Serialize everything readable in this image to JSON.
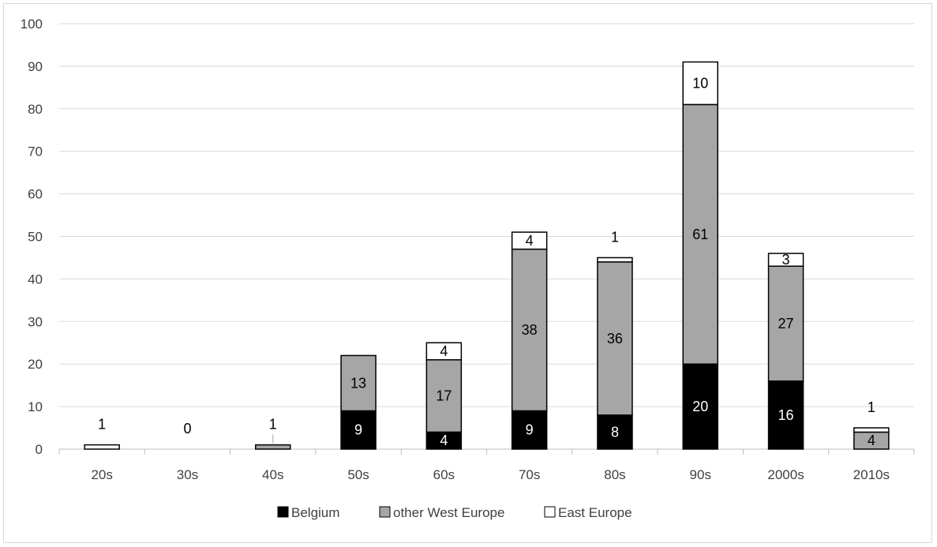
{
  "chart_data": {
    "type": "bar",
    "stacked": true,
    "categories": [
      "20s",
      "30s",
      "40s",
      "50s",
      "60s",
      "70s",
      "80s",
      "90s",
      "2000s",
      "2010s"
    ],
    "series": [
      {
        "name": "Belgium",
        "values": [
          0,
          0,
          0,
          9,
          4,
          9,
          8,
          20,
          16,
          0
        ],
        "color": "#000000"
      },
      {
        "name": "other West Europe",
        "values": [
          0,
          0,
          1,
          13,
          17,
          38,
          36,
          61,
          27,
          4
        ],
        "color": "#a6a6a6"
      },
      {
        "name": "East Europe",
        "values": [
          1,
          0,
          0,
          0,
          4,
          4,
          1,
          10,
          3,
          1
        ],
        "color": "#ffffff"
      }
    ],
    "data_labels": [
      {
        "category": "20s",
        "series": "East Europe",
        "text": "1"
      },
      {
        "category": "30s",
        "series": "total",
        "text": "0"
      },
      {
        "category": "40s",
        "series": "other West Europe",
        "text": "1"
      },
      {
        "category": "50s",
        "series": "Belgium",
        "text": "9"
      },
      {
        "category": "50s",
        "series": "other West Europe",
        "text": "13"
      },
      {
        "category": "60s",
        "series": "Belgium",
        "text": "4"
      },
      {
        "category": "60s",
        "series": "other West Europe",
        "text": "17"
      },
      {
        "category": "60s",
        "series": "East Europe",
        "text": "4"
      },
      {
        "category": "70s",
        "series": "Belgium",
        "text": "9"
      },
      {
        "category": "70s",
        "series": "other West Europe",
        "text": "38"
      },
      {
        "category": "70s",
        "series": "East Europe",
        "text": "4"
      },
      {
        "category": "80s",
        "series": "Belgium",
        "text": "8"
      },
      {
        "category": "80s",
        "series": "other West Europe",
        "text": "36"
      },
      {
        "category": "80s",
        "series": "East Europe",
        "text": "1"
      },
      {
        "category": "90s",
        "series": "Belgium",
        "text": "20"
      },
      {
        "category": "90s",
        "series": "other West Europe",
        "text": "61"
      },
      {
        "category": "90s",
        "series": "East Europe",
        "text": "10"
      },
      {
        "category": "2000s",
        "series": "Belgium",
        "text": "16"
      },
      {
        "category": "2000s",
        "series": "other West Europe",
        "text": "27"
      },
      {
        "category": "2000s",
        "series": "East Europe",
        "text": "3"
      },
      {
        "category": "2010s",
        "series": "other West Europe",
        "text": "4"
      },
      {
        "category": "2010s",
        "series": "East Europe",
        "text": "1"
      }
    ],
    "title": "",
    "xlabel": "",
    "ylabel": "",
    "ylim": [
      0,
      100
    ],
    "yticks": [
      0,
      10,
      20,
      30,
      40,
      50,
      60,
      70,
      80,
      90,
      100
    ],
    "grid": true,
    "legend": "bottom"
  }
}
